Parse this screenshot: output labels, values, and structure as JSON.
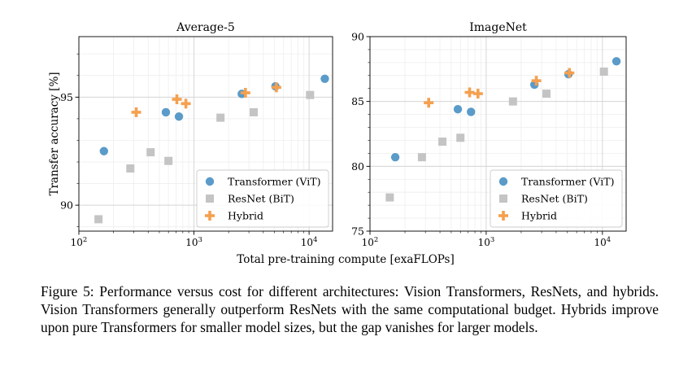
{
  "colors": {
    "vit": "#5a9bc9",
    "resnet": "#c4c4c4",
    "hybrid": "#f5a04e",
    "grid_major": "#d6d6d6",
    "grid_minor": "#eeeeee"
  },
  "chart_data": [
    {
      "type": "scatter",
      "title": "Average-5",
      "ylabel": "Transfer accuracy [%]",
      "xlabel": "",
      "xscale": "log",
      "xlim": [
        100,
        16000
      ],
      "ylim": [
        88.8,
        97.8
      ],
      "yticks": [
        {
          "v": 90,
          "label": "90"
        },
        {
          "v": 95,
          "label": "95"
        }
      ],
      "xticks": [
        {
          "v": 100,
          "base": "10",
          "exp": "2"
        },
        {
          "v": 1000,
          "base": "10",
          "exp": "3"
        },
        {
          "v": 10000,
          "base": "10",
          "exp": "4"
        }
      ],
      "legend_position": "bottom-right",
      "series": [
        {
          "name": "Transformer (ViT)",
          "marker": "circle",
          "color_key": "vit",
          "points": [
            [
              165,
              92.5
            ],
            [
              570,
              94.3
            ],
            [
              740,
              94.1
            ],
            [
              2600,
              95.15
            ],
            [
              5100,
              95.5
            ],
            [
              13700,
              95.85
            ]
          ]
        },
        {
          "name": "ResNet (BiT)",
          "marker": "square",
          "color_key": "resnet",
          "points": [
            [
              148,
              89.35
            ],
            [
              280,
              91.7
            ],
            [
              420,
              92.45
            ],
            [
              600,
              92.05
            ],
            [
              1700,
              94.05
            ],
            [
              3300,
              94.3
            ],
            [
              10200,
              95.1
            ]
          ]
        },
        {
          "name": "Hybrid",
          "marker": "plus",
          "color_key": "hybrid",
          "points": [
            [
              315,
              94.3
            ],
            [
              710,
              94.9
            ],
            [
              850,
              94.7
            ],
            [
              2800,
              95.2
            ],
            [
              5200,
              95.45
            ]
          ]
        }
      ]
    },
    {
      "type": "scatter",
      "title": "ImageNet",
      "ylabel": "",
      "xlabel": "Total pre-training compute [exaFLOPs]",
      "xscale": "log",
      "xlim": [
        100,
        16000
      ],
      "ylim": [
        75,
        90
      ],
      "yticks": [
        {
          "v": 75,
          "label": "75"
        },
        {
          "v": 80,
          "label": "80"
        },
        {
          "v": 85,
          "label": "85"
        },
        {
          "v": 90,
          "label": "90"
        }
      ],
      "xticks": [
        {
          "v": 100,
          "base": "10",
          "exp": "2"
        },
        {
          "v": 1000,
          "base": "10",
          "exp": "3"
        },
        {
          "v": 10000,
          "base": "10",
          "exp": "4"
        }
      ],
      "legend_position": "bottom-right",
      "series": [
        {
          "name": "Transformer (ViT)",
          "marker": "circle",
          "color_key": "vit",
          "points": [
            [
              165,
              80.7
            ],
            [
              570,
              84.4
            ],
            [
              740,
              84.2
            ],
            [
              2600,
              86.3
            ],
            [
              5100,
              87.1
            ],
            [
              13200,
              88.1
            ]
          ]
        },
        {
          "name": "ResNet (BiT)",
          "marker": "square",
          "color_key": "resnet",
          "points": [
            [
              148,
              77.6
            ],
            [
              280,
              80.7
            ],
            [
              420,
              81.9
            ],
            [
              600,
              82.2
            ],
            [
              1700,
              85.0
            ],
            [
              3300,
              85.6
            ],
            [
              10300,
              87.3
            ]
          ]
        },
        {
          "name": "Hybrid",
          "marker": "plus",
          "color_key": "hybrid",
          "points": [
            [
              320,
              84.9
            ],
            [
              720,
              85.7
            ],
            [
              850,
              85.6
            ],
            [
              2700,
              86.6
            ],
            [
              5200,
              87.2
            ]
          ]
        }
      ]
    }
  ],
  "caption": "Figure 5: Performance versus cost for different architectures: Vision Transformers, ResNets, and hybrids. Vision Transformers generally outperform ResNets with the same computational budget. Hybrids improve upon pure Transformers for smaller model sizes, but the gap vanishes for larger models."
}
